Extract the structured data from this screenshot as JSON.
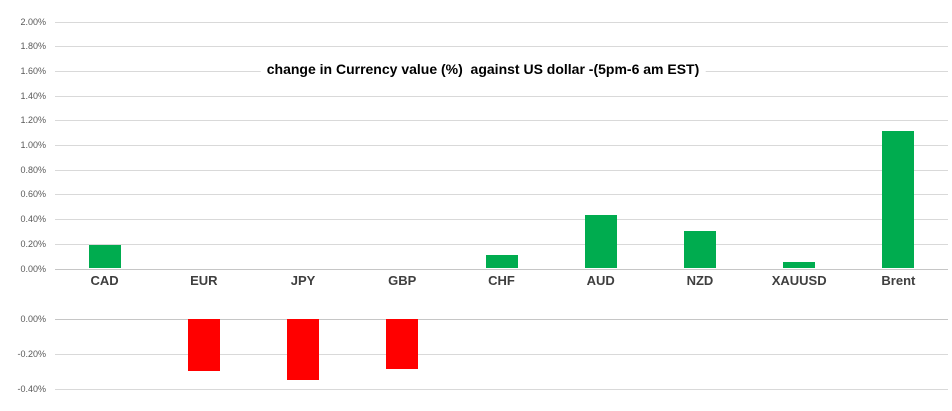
{
  "chart_data": {
    "type": "bar",
    "title": "change in Currency value (%)  against US dollar -(5pm-6 am EST)",
    "categories": [
      "CAD",
      "EUR",
      "JPY",
      "GBP",
      "CHF",
      "AUD",
      "NZD",
      "XAUUSD",
      "Brent"
    ],
    "values": [
      0.19,
      -0.3,
      -0.35,
      -0.29,
      0.11,
      0.43,
      0.3,
      0.05,
      1.11
    ],
    "unit": "%",
    "grid": true,
    "legend": false,
    "positive_axis": {
      "min": 0.0,
      "max": 2.0,
      "step": 0.2,
      "tick_labels": [
        "2.00%",
        "1.80%",
        "1.60%",
        "1.40%",
        "1.20%",
        "1.00%",
        "0.80%",
        "0.60%",
        "0.40%",
        "0.20%",
        "0.00%"
      ]
    },
    "negative_axis": {
      "min": -0.4,
      "max": 0.0,
      "step": 0.2,
      "tick_labels": [
        "0.00%",
        "-0.20%",
        "-0.40%"
      ]
    },
    "bar_colors": {
      "positive": "#00AC4F",
      "negative": "#FF0000"
    },
    "colors": {
      "gridline": "#D9D9D9",
      "axis_line": "#C6C6C6",
      "tick_label": "#595959",
      "category_label": "#3F3F3F",
      "title": "#000000",
      "background": "#FFFFFF"
    }
  }
}
